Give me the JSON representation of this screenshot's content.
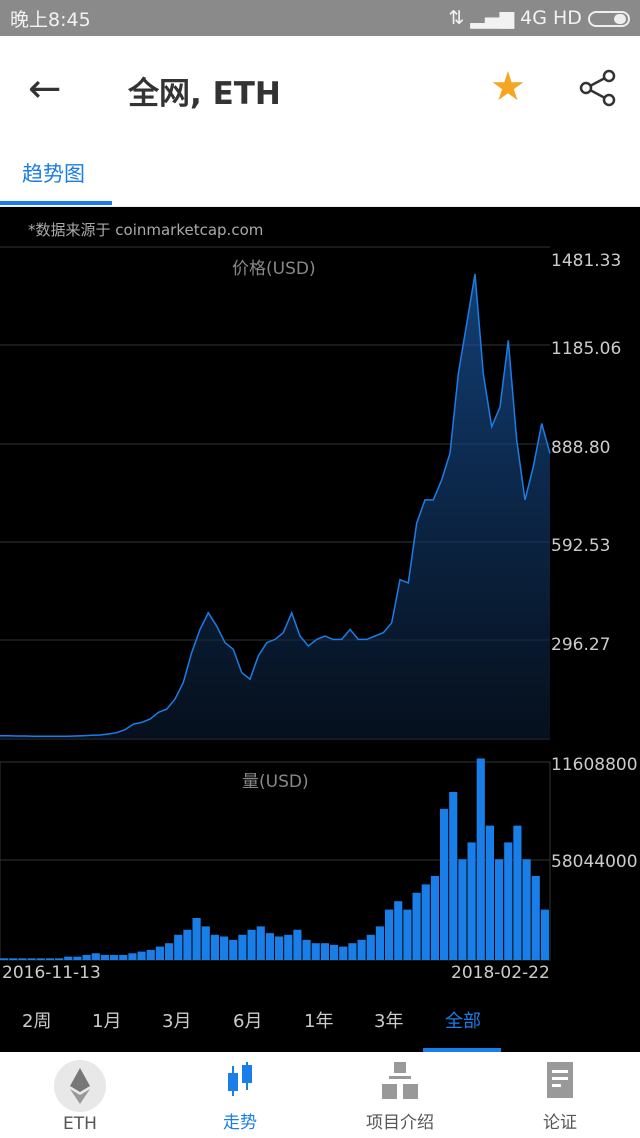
{
  "status": {
    "time": "晚上8:45",
    "network": "4G HD"
  },
  "header": {
    "title": "全网, ETH",
    "back_icon": "arrow-left-icon",
    "star_icon": "star-icon",
    "share_icon": "share-icon",
    "star_color": "#f5a623"
  },
  "tabs": [
    {
      "label": "趋势图",
      "active": true
    }
  ],
  "chart": {
    "source": "*数据来源于 coinmarketcap.com",
    "accent": "#1a7ee8"
  },
  "chart_data": [
    {
      "type": "area",
      "title": "价格(USD)",
      "ylim": [
        0,
        1481.33
      ],
      "yticks": [
        "1481.33",
        "1185.06",
        "888.80",
        "592.53",
        "296.27"
      ],
      "x_start": "2016-11-13",
      "x_end": "2018-02-22",
      "grid": true,
      "values": [
        10,
        10,
        9,
        9,
        8,
        8,
        8,
        8,
        8,
        9,
        10,
        11,
        12,
        15,
        19,
        28,
        45,
        50,
        60,
        80,
        90,
        120,
        170,
        260,
        330,
        380,
        340,
        290,
        270,
        200,
        180,
        250,
        290,
        300,
        320,
        380,
        310,
        280,
        300,
        310,
        300,
        300,
        330,
        300,
        300,
        310,
        320,
        350,
        480,
        470,
        650,
        720,
        720,
        780,
        860,
        1100,
        1250,
        1400,
        1100,
        940,
        1000,
        1200,
        900,
        720,
        820,
        950,
        860
      ]
    },
    {
      "type": "bar",
      "title": "量(USD)",
      "ylim": [
        0,
        116088000
      ],
      "yticks": [
        "11608800",
        "58044000"
      ],
      "x_start": "2016-11-13",
      "x_end": "2018-02-22",
      "grid": true,
      "values": [
        1,
        1,
        1,
        1,
        1,
        1,
        1,
        2,
        2,
        3,
        4,
        3,
        3,
        3,
        4,
        5,
        6,
        8,
        10,
        15,
        18,
        25,
        20,
        15,
        14,
        12,
        15,
        18,
        20,
        16,
        14,
        15,
        18,
        12,
        10,
        10,
        9,
        8,
        10,
        12,
        15,
        20,
        30,
        35,
        30,
        40,
        45,
        50,
        90,
        100,
        60,
        70,
        120,
        80,
        60,
        70,
        80,
        60,
        50,
        30
      ]
    }
  ],
  "date_start": "2016-11-13",
  "date_end": "2018-02-22",
  "ranges": [
    "2周",
    "1月",
    "3月",
    "6月",
    "1年",
    "3年",
    "全部"
  ],
  "active_range": "全部",
  "bottom_nav": [
    {
      "label": "ETH",
      "icon": "ethereum-icon"
    },
    {
      "label": "走势",
      "icon": "candlestick-icon",
      "active": true
    },
    {
      "label": "项目介绍",
      "icon": "hierarchy-icon"
    },
    {
      "label": "论证",
      "icon": "document-icon"
    }
  ]
}
